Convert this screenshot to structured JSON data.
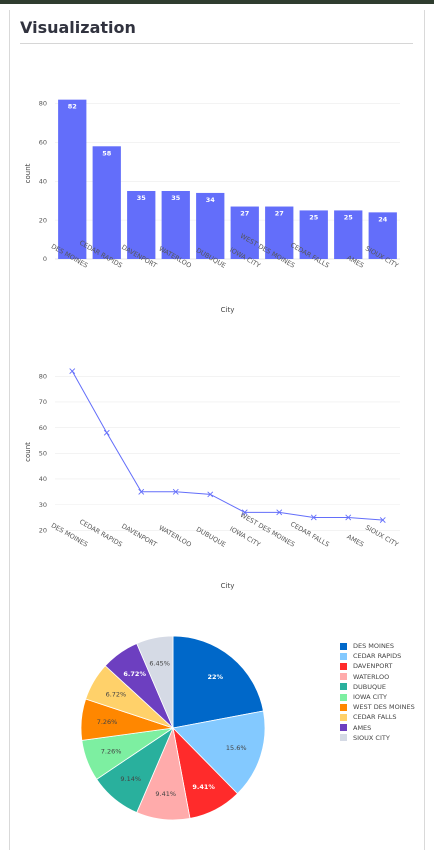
{
  "section_title": "Visualization",
  "chart_data": [
    {
      "type": "bar",
      "categories": [
        "DES MOINES",
        "CEDAR RAPIDS",
        "DAVENPORT",
        "WATERLOO",
        "DUBUQUE",
        "IOWA CITY",
        "WEST DES MOINES",
        "CEDAR FALLS",
        "AMES",
        "SIOUX CITY"
      ],
      "values": [
        82,
        58,
        35,
        35,
        34,
        27,
        27,
        25,
        25,
        24
      ],
      "xlabel": "City",
      "ylabel": "count",
      "ylim": [
        0,
        88
      ],
      "yticks": [
        0,
        20,
        40,
        60,
        80
      ],
      "color": "#636efa",
      "grid": true
    },
    {
      "type": "line",
      "categories": [
        "DES MOINES",
        "CEDAR RAPIDS",
        "DAVENPORT",
        "WATERLOO",
        "DUBUQUE",
        "IOWA CITY",
        "WEST DES MOINES",
        "CEDAR FALLS",
        "AMES",
        "SIOUX CITY"
      ],
      "values": [
        82,
        58,
        35,
        35,
        34,
        27,
        27,
        25,
        25,
        24
      ],
      "xlabel": "City",
      "ylabel": "count",
      "ylim": [
        17,
        84
      ],
      "yticks": [
        20,
        30,
        40,
        50,
        60,
        70,
        80
      ],
      "color": "#636efa",
      "marker": "x",
      "grid": true
    },
    {
      "type": "pie",
      "labels": [
        "DES MOINES",
        "CEDAR RAPIDS",
        "DAVENPORT",
        "WATERLOO",
        "DUBUQUE",
        "IOWA CITY",
        "WEST DES MOINES",
        "CEDAR FALLS",
        "AMES",
        "SIOUX CITY"
      ],
      "values": [
        82,
        58,
        35,
        35,
        34,
        27,
        27,
        25,
        25,
        24
      ],
      "slice_labels": [
        "22%",
        "15.6%",
        "9.41%",
        "9.41%",
        "9.14%",
        "7.26%",
        "7.26%",
        "6.72%",
        "6.72%",
        "6.45%"
      ],
      "colors": [
        "#0068c9",
        "#83c9ff",
        "#ff2b2b",
        "#ffabab",
        "#29b09d",
        "#7defa1",
        "#ff8700",
        "#ffd16a",
        "#6d3fc0",
        "#d5dae5"
      ],
      "label_colors": [
        "#ffffff",
        "#444444",
        "#ffffff",
        "#444444",
        "#444444",
        "#444444",
        "#444444",
        "#444444",
        "#ffffff",
        "#444444"
      ],
      "label_bold": [
        true,
        false,
        true,
        false,
        false,
        false,
        false,
        false,
        true,
        false
      ],
      "legend_position": "right"
    }
  ]
}
